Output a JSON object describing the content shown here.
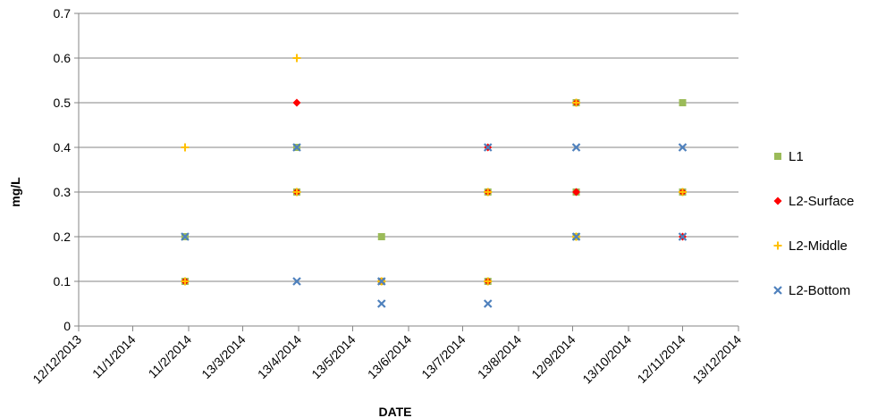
{
  "chart_data": {
    "type": "scatter",
    "title": "",
    "xlabel": "DATE",
    "ylabel": "mg/L",
    "xlim": [
      "12/12/2013",
      "13/12/2014"
    ],
    "ylim": [
      0,
      0.7
    ],
    "x_ticks": [
      "12/12/2013",
      "11/1/2014",
      "11/2/2014",
      "13/3/2014",
      "13/4/2014",
      "13/5/2014",
      "13/6/2014",
      "13/7/2014",
      "13/8/2014",
      "12/9/2014",
      "13/10/2014",
      "12/11/2014",
      "13/12/2014"
    ],
    "y_ticks": [
      "0",
      "0.1",
      "0.2",
      "0.3",
      "0.4",
      "0.5",
      "0.6",
      "0.7"
    ],
    "grid": "horizontal",
    "legend_position": "right",
    "series": [
      {
        "name": "L1",
        "marker": "square",
        "color": "#9BBB59",
        "points": [
          {
            "x": "2014-02-09",
            "y": 0.1
          },
          {
            "x": "2014-02-09",
            "y": 0.2
          },
          {
            "x": "2014-04-12",
            "y": 0.3
          },
          {
            "x": "2014-04-12",
            "y": 0.4
          },
          {
            "x": "2014-05-29",
            "y": 0.2
          },
          {
            "x": "2014-05-29",
            "y": 0.1
          },
          {
            "x": "2014-07-27",
            "y": 0.1
          },
          {
            "x": "2014-07-27",
            "y": 0.3
          },
          {
            "x": "2014-09-14",
            "y": 0.2
          },
          {
            "x": "2014-09-14",
            "y": 0.3
          },
          {
            "x": "2014-09-14",
            "y": 0.5
          },
          {
            "x": "2014-11-12",
            "y": 0.3
          },
          {
            "x": "2014-11-12",
            "y": 0.5
          }
        ]
      },
      {
        "name": "L2-Surface",
        "marker": "diamond",
        "color": "#FF0000",
        "points": [
          {
            "x": "2014-02-09",
            "y": 0.1
          },
          {
            "x": "2014-04-12",
            "y": 0.3
          },
          {
            "x": "2014-04-12",
            "y": 0.5
          },
          {
            "x": "2014-05-29",
            "y": 0.1
          },
          {
            "x": "2014-07-27",
            "y": 0.1
          },
          {
            "x": "2014-07-27",
            "y": 0.3
          },
          {
            "x": "2014-07-27",
            "y": 0.4
          },
          {
            "x": "2014-09-14",
            "y": 0.3
          },
          {
            "x": "2014-09-14",
            "y": 0.5
          },
          {
            "x": "2014-11-12",
            "y": 0.2
          },
          {
            "x": "2014-11-12",
            "y": 0.3
          }
        ]
      },
      {
        "name": "L2-Middle",
        "marker": "plus",
        "color": "#FFC000",
        "points": [
          {
            "x": "2014-02-09",
            "y": 0.1
          },
          {
            "x": "2014-02-09",
            "y": 0.4
          },
          {
            "x": "2014-04-12",
            "y": 0.3
          },
          {
            "x": "2014-04-12",
            "y": 0.6
          },
          {
            "x": "2014-05-29",
            "y": 0.1
          },
          {
            "x": "2014-07-27",
            "y": 0.1
          },
          {
            "x": "2014-07-27",
            "y": 0.3
          },
          {
            "x": "2014-09-14",
            "y": 0.2
          },
          {
            "x": "2014-09-14",
            "y": 0.5
          },
          {
            "x": "2014-11-12",
            "y": 0.3
          }
        ]
      },
      {
        "name": "L2-Bottom",
        "marker": "x",
        "color": "#4F81BD",
        "points": [
          {
            "x": "2014-02-09",
            "y": 0.2
          },
          {
            "x": "2014-04-12",
            "y": 0.1
          },
          {
            "x": "2014-04-12",
            "y": 0.4
          },
          {
            "x": "2014-05-29",
            "y": 0.05
          },
          {
            "x": "2014-05-29",
            "y": 0.1
          },
          {
            "x": "2014-07-27",
            "y": 0.05
          },
          {
            "x": "2014-07-27",
            "y": 0.4
          },
          {
            "x": "2014-09-14",
            "y": 0.2
          },
          {
            "x": "2014-09-14",
            "y": 0.4
          },
          {
            "x": "2014-11-12",
            "y": 0.2
          },
          {
            "x": "2014-11-12",
            "y": 0.4
          }
        ]
      }
    ]
  }
}
